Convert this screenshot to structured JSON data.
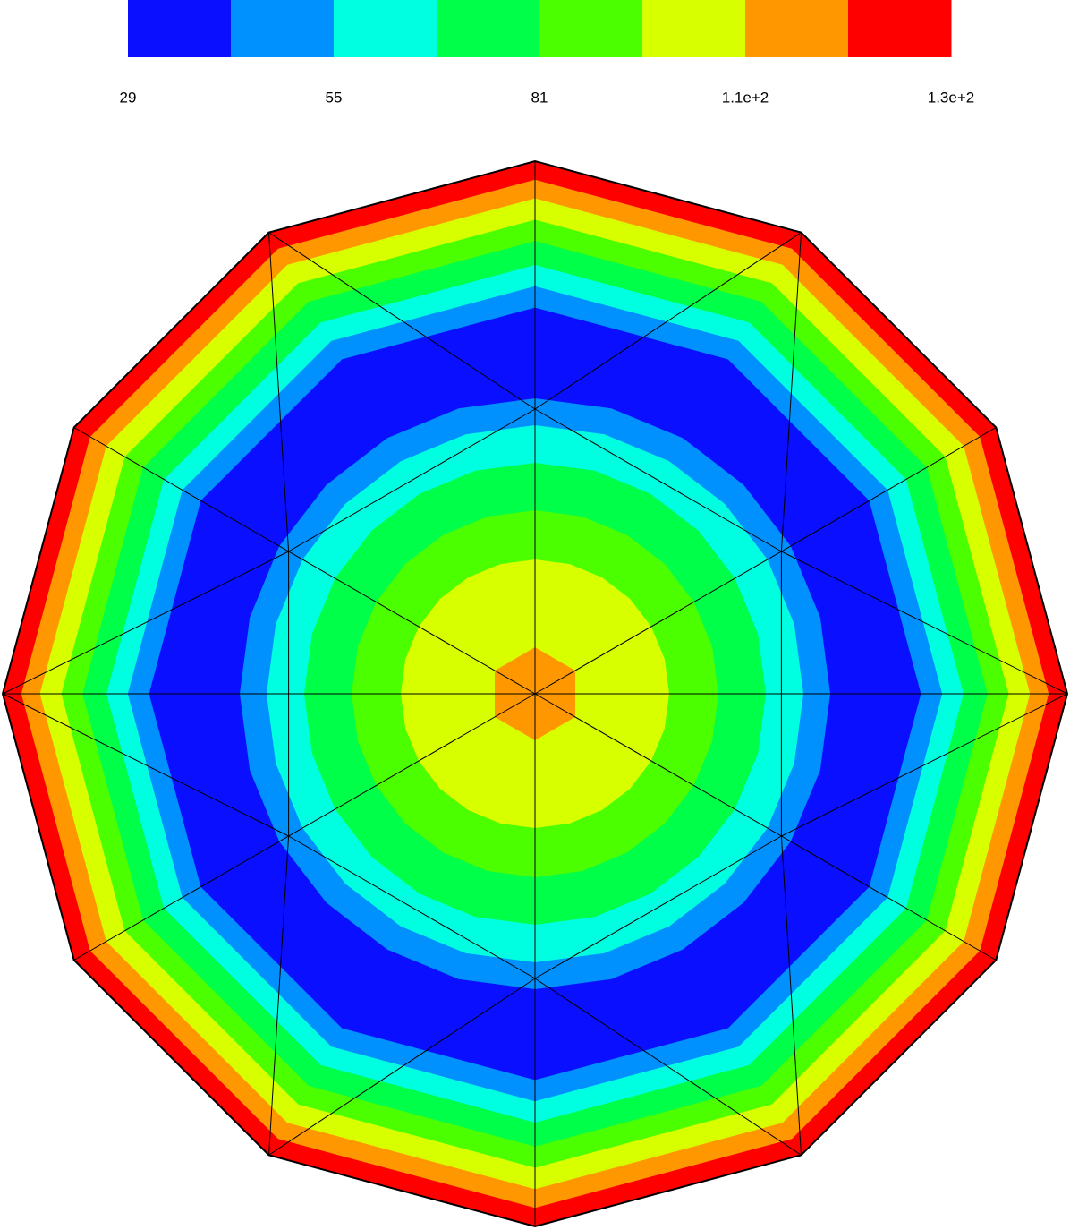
{
  "chart_data": {
    "type": "contour",
    "colorbar": {
      "colors": [
        "#0a10ff",
        "#0091ff",
        "#00ffe0",
        "#00ff48",
        "#4cff00",
        "#d8ff00",
        "#ff9800",
        "#ff0000"
      ],
      "lim": [
        29,
        133
      ],
      "ticks": [
        29,
        55,
        81,
        {
          "value": 107,
          "label": "1.1e+2"
        },
        {
          "value": 133,
          "label": "1.3e+2"
        }
      ]
    }
  }
}
